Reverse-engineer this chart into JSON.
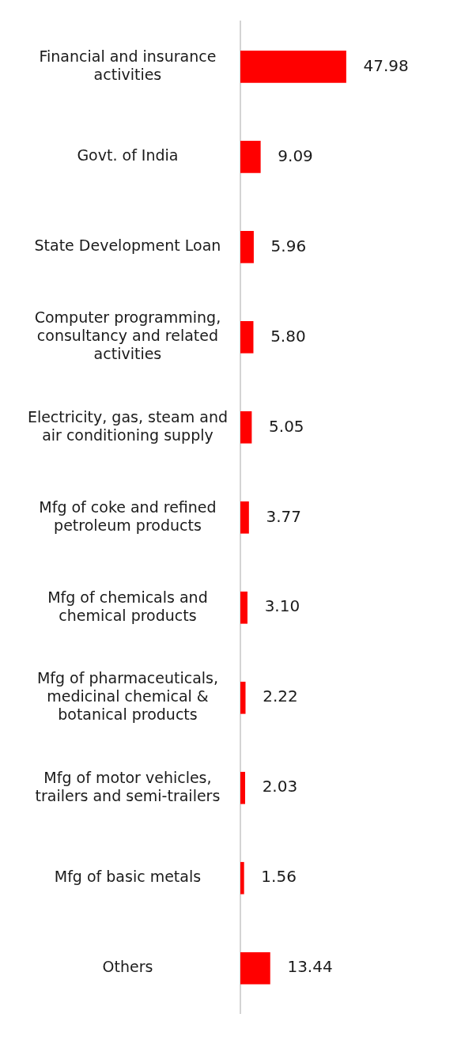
{
  "chart_data": {
    "type": "bar",
    "orientation": "horizontal",
    "categories": [
      "Financial and insurance activities",
      "Govt. of India",
      "State Development Loan",
      "Computer programming, consultancy and related activities",
      "Electricity, gas, steam and air conditioning supply",
      "Mfg of coke and refined petroleum products",
      "Mfg of chemicals and chemical products",
      "Mfg of pharmaceuticals, medicinal chemical & botanical products",
      "Mfg of motor vehicles, trailers and semi-trailers",
      "Mfg of basic metals",
      "Others"
    ],
    "values": [
      47.98,
      9.09,
      5.96,
      5.8,
      5.05,
      3.77,
      3.1,
      2.22,
      2.03,
      1.56,
      13.44
    ],
    "value_labels": [
      "47.98",
      "9.09",
      "5.96",
      "5.80",
      "5.05",
      "3.77",
      "3.10",
      "2.22",
      "2.03",
      "1.56",
      "13.44"
    ],
    "color": "#ff0000",
    "tick_labels": "y",
    "grid": false,
    "legend": false
  }
}
